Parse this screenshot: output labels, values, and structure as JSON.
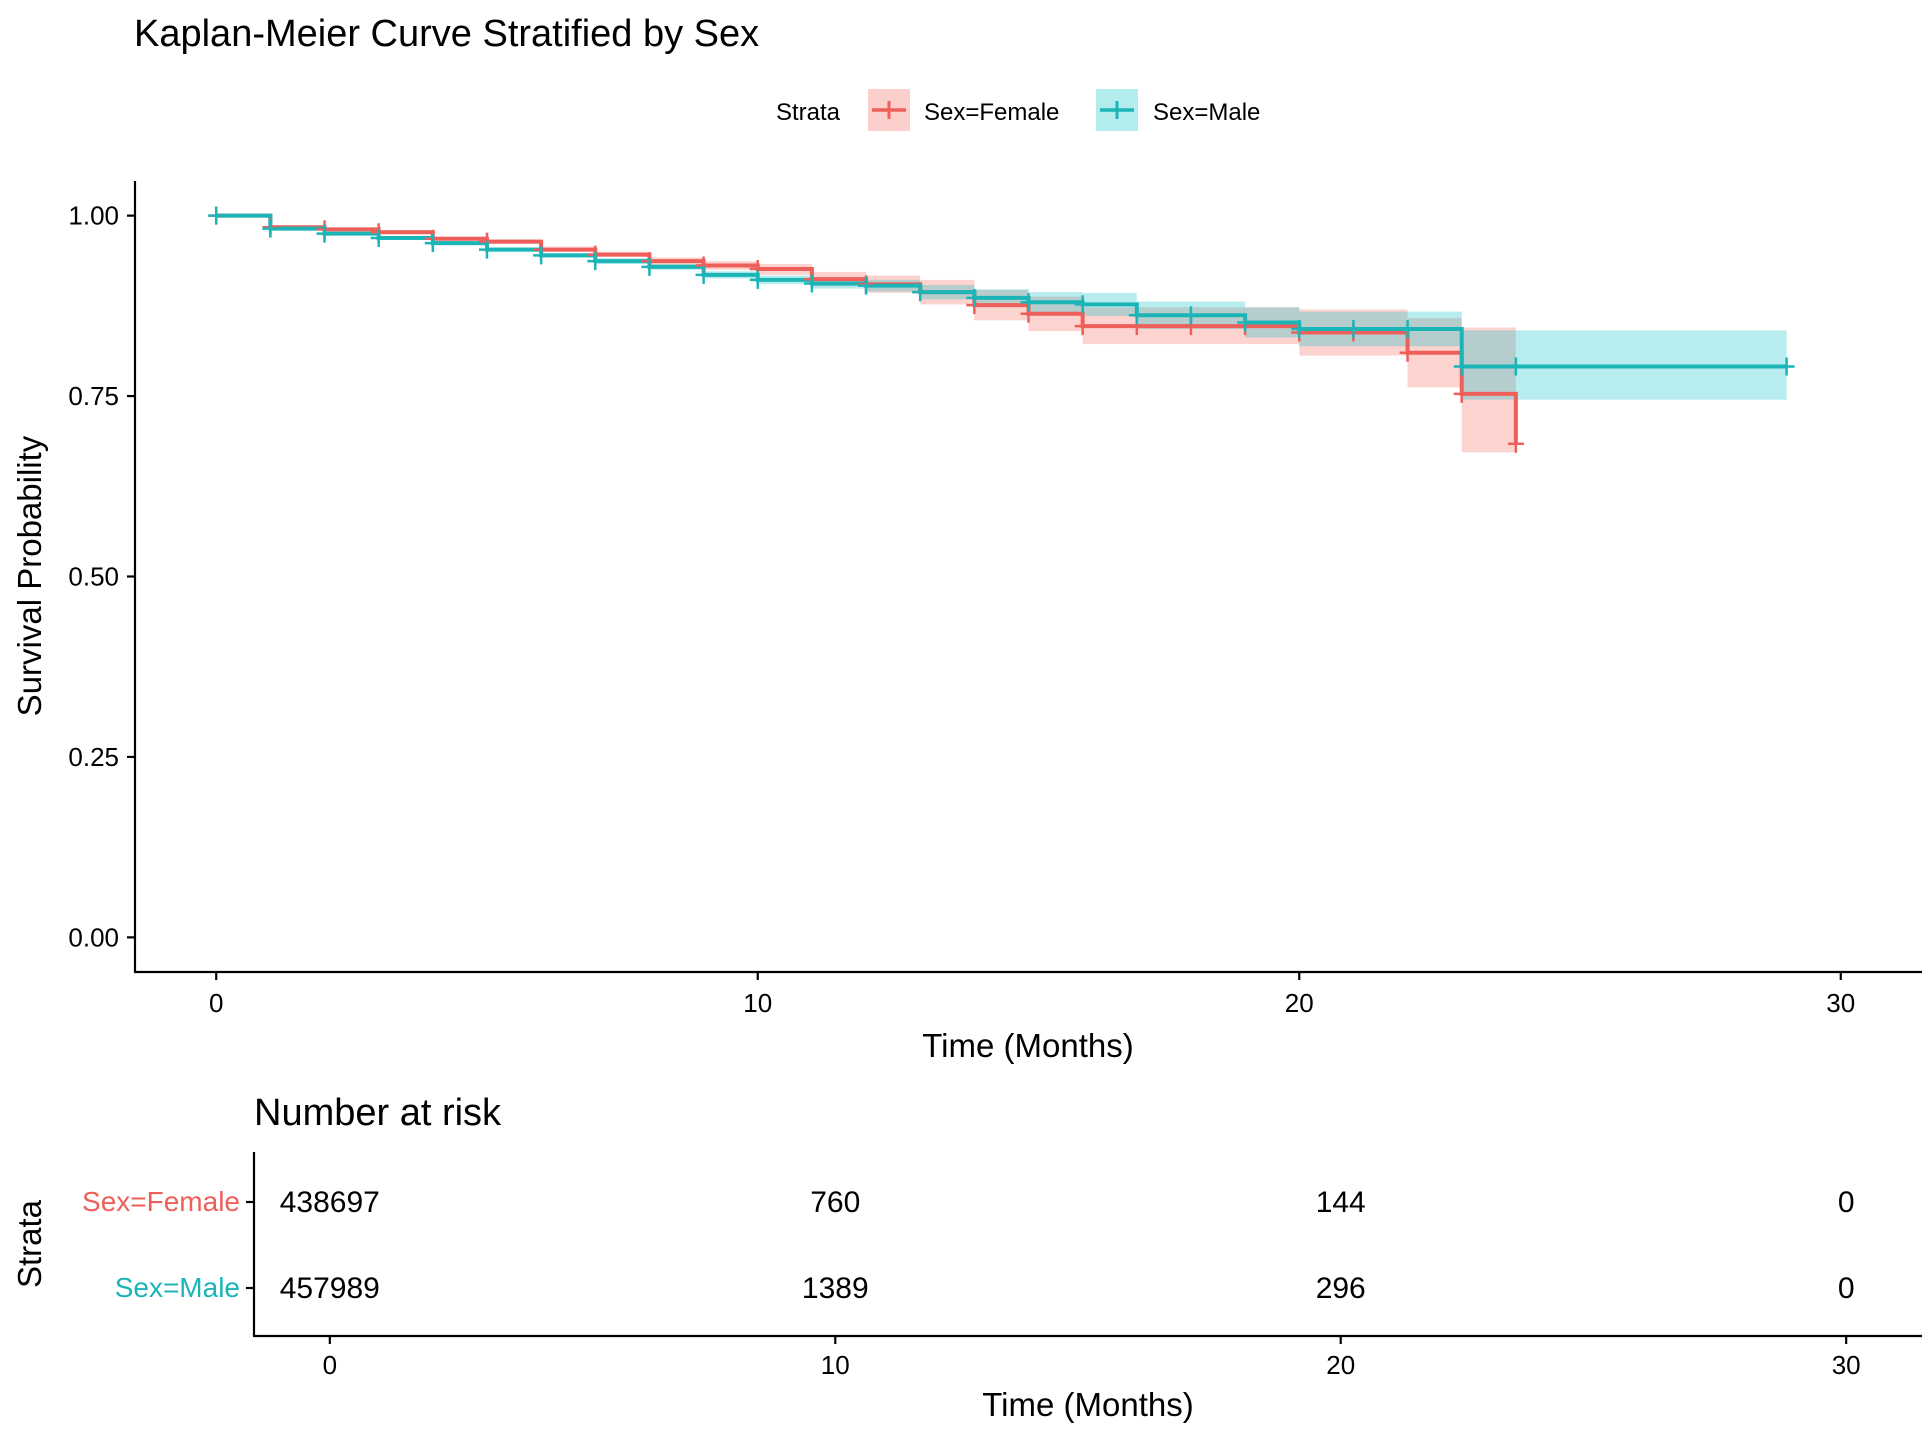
{
  "colors": {
    "female": "#F8766D",
    "female_line": "#EE5F5A",
    "male": "#00BFC4",
    "male_line": "#1BB5B8"
  },
  "chart_data": [
    {
      "type": "line",
      "title": "Kaplan-Meier Curve Stratified by Sex",
      "xlabel": "Time (Months)",
      "ylabel": "Survival Probability",
      "xlim": [
        -1.5,
        31.5
      ],
      "ylim": [
        -0.048,
        1.048
      ],
      "x_ticks": [
        0,
        10,
        20,
        30
      ],
      "x_tick_labels": [
        "0",
        "10",
        "20",
        "30"
      ],
      "y_ticks": [
        0,
        0.25,
        0.5,
        0.75,
        1.0
      ],
      "y_tick_labels": [
        "0.00",
        "0.25",
        "0.50",
        "0.75",
        "1.00"
      ],
      "grid": false,
      "legend": {
        "title": "Strata",
        "placement": "top",
        "entries": [
          "Sex=Female",
          "Sex=Male"
        ]
      },
      "series": [
        {
          "name": "Sex=Female",
          "step": [
            [
              0,
              1.0
            ],
            [
              1,
              0.984
            ],
            [
              2,
              0.981
            ],
            [
              3,
              0.977
            ],
            [
              4,
              0.968
            ],
            [
              5,
              0.964
            ],
            [
              6,
              0.953
            ],
            [
              7,
              0.946
            ],
            [
              8,
              0.937
            ],
            [
              9,
              0.931
            ],
            [
              10,
              0.926
            ],
            [
              11,
              0.912
            ],
            [
              12,
              0.905
            ],
            [
              13,
              0.894
            ],
            [
              14,
              0.876
            ],
            [
              15,
              0.864
            ],
            [
              16,
              0.847
            ],
            [
              17,
              0.847
            ],
            [
              18,
              0.847
            ],
            [
              19,
              0.847
            ],
            [
              20,
              0.838
            ],
            [
              21,
              0.838
            ],
            [
              22,
              0.81
            ],
            [
              23,
              0.753
            ],
            [
              24,
              0.684
            ]
          ],
          "ci_lower": [
            1.0,
            0.982,
            0.979,
            0.975,
            0.966,
            0.961,
            0.95,
            0.943,
            0.932,
            0.925,
            0.918,
            0.902,
            0.893,
            0.877,
            0.855,
            0.84,
            0.822,
            0.822,
            0.822,
            0.822,
            0.806,
            0.806,
            0.762,
            0.672,
            0.672
          ],
          "ci_upper": [
            1.0,
            0.986,
            0.983,
            0.98,
            0.971,
            0.967,
            0.957,
            0.95,
            0.942,
            0.937,
            0.933,
            0.922,
            0.917,
            0.911,
            0.897,
            0.888,
            0.873,
            0.873,
            0.873,
            0.873,
            0.87,
            0.87,
            0.858,
            0.845,
            0.845
          ],
          "censor_times": [
            0,
            1,
            2,
            3,
            4,
            5,
            6,
            7,
            8,
            9,
            10,
            11,
            12,
            13,
            14,
            15,
            16,
            17,
            18,
            19,
            20,
            21,
            22,
            23,
            24
          ],
          "end_time": 24
        },
        {
          "name": "Sex=Male",
          "step": [
            [
              0,
              1.0
            ],
            [
              1,
              0.982
            ],
            [
              2,
              0.975
            ],
            [
              3,
              0.969
            ],
            [
              4,
              0.962
            ],
            [
              5,
              0.953
            ],
            [
              6,
              0.945
            ],
            [
              7,
              0.937
            ],
            [
              8,
              0.929
            ],
            [
              9,
              0.918
            ],
            [
              10,
              0.911
            ],
            [
              11,
              0.906
            ],
            [
              12,
              0.903
            ],
            [
              13,
              0.894
            ],
            [
              14,
              0.886
            ],
            [
              15,
              0.88
            ],
            [
              16,
              0.877
            ],
            [
              17,
              0.862
            ],
            [
              18,
              0.862
            ],
            [
              19,
              0.852
            ],
            [
              20,
              0.843
            ],
            [
              21,
              0.843
            ],
            [
              22,
              0.843
            ],
            [
              23,
              0.791
            ],
            [
              24,
              0.791
            ],
            [
              29,
              0.791
            ]
          ],
          "ci_lower": [
            1.0,
            0.98,
            0.973,
            0.967,
            0.959,
            0.95,
            0.942,
            0.933,
            0.925,
            0.913,
            0.905,
            0.899,
            0.895,
            0.884,
            0.874,
            0.866,
            0.861,
            0.843,
            0.843,
            0.831,
            0.819,
            0.819,
            0.819,
            0.745,
            0.745,
            0.745
          ],
          "ci_upper": [
            1.0,
            0.984,
            0.977,
            0.971,
            0.965,
            0.956,
            0.948,
            0.941,
            0.933,
            0.923,
            0.917,
            0.913,
            0.911,
            0.904,
            0.898,
            0.894,
            0.893,
            0.881,
            0.881,
            0.873,
            0.867,
            0.867,
            0.867,
            0.841,
            0.841,
            0.841
          ],
          "censor_times": [
            0,
            1,
            2,
            3,
            4,
            5,
            6,
            7,
            8,
            9,
            10,
            11,
            12,
            13,
            14,
            15,
            16,
            17,
            18,
            19,
            20,
            21,
            22,
            23,
            24,
            29
          ],
          "end_time": 29
        }
      ]
    },
    {
      "type": "table",
      "title": "Number at risk",
      "xlabel": "Time (Months)",
      "ylabel": "Strata",
      "xlim": [
        -1.5,
        31.5
      ],
      "x_ticks": [
        0,
        10,
        20,
        30
      ],
      "x_tick_labels": [
        "0",
        "10",
        "20",
        "30"
      ],
      "rows": [
        {
          "name": "Sex=Female",
          "values": [
            "438697",
            "760",
            "144",
            "0"
          ]
        },
        {
          "name": "Sex=Male",
          "values": [
            "457989",
            "1389",
            "296",
            "0"
          ]
        }
      ]
    }
  ]
}
